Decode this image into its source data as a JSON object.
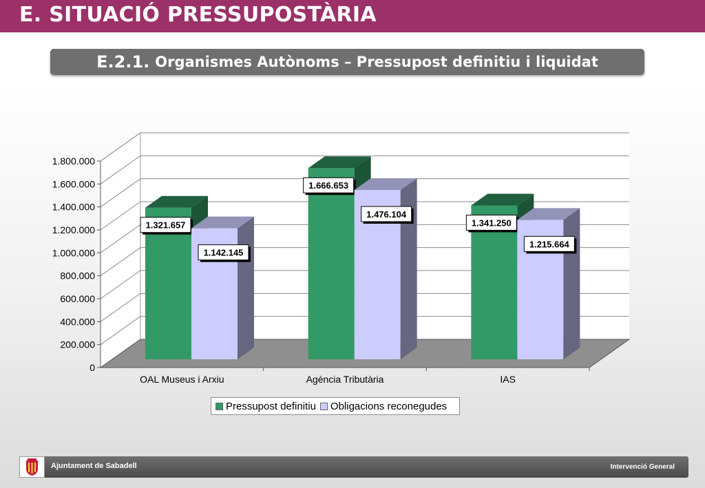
{
  "header": {
    "title": "E. SITUACIÓ PRESSUPOSTÀRIA",
    "subtitle_code": "E.2.1.",
    "subtitle_text": "Organismes Autònoms – Pressupost definitiu i liquidat"
  },
  "footer": {
    "left": "Ajuntament de Sabadell",
    "right": "Intervenció General"
  },
  "chart_data": {
    "type": "bar",
    "style": "3d-clustered",
    "categories": [
      "OAL Museus i Arxiu",
      "Agència Tributària",
      "IAS"
    ],
    "series": [
      {
        "name": "Pressupost definitiu",
        "values": [
          1321657,
          1666653,
          1341250
        ],
        "labels": [
          "1.321.657",
          "1.666.653",
          "1.341.250"
        ],
        "color": "#339966"
      },
      {
        "name": "Obligacions reconegudes",
        "values": [
          1142145,
          1476104,
          1215664
        ],
        "labels": [
          "1.142.145",
          "1.476.104",
          "1.215.664"
        ],
        "color": "#ccccff"
      }
    ],
    "y_ticks": [
      "0",
      "200.000",
      "400.000",
      "600.000",
      "800.000",
      "1.000.000",
      "1.200.000",
      "1.400.000",
      "1.600.000",
      "1.800.000"
    ],
    "ylim": [
      0,
      1800000
    ],
    "y_step": 200000,
    "grid": true,
    "legend_position": "bottom"
  }
}
